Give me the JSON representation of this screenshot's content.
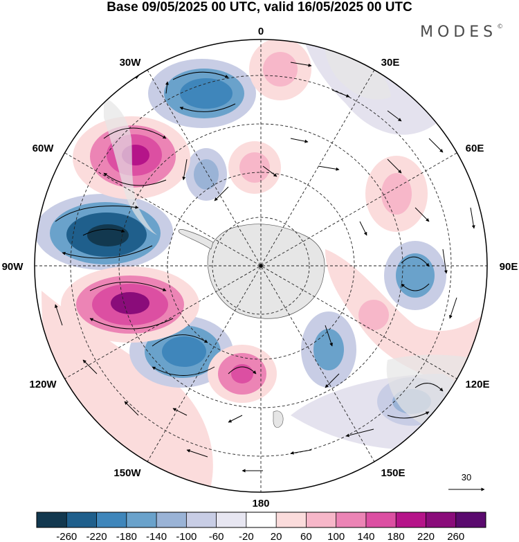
{
  "header": {
    "title": "Base 09/05/2025 00 UTC, valid 16/05/2025 00 UTC",
    "brand": "MODES",
    "brand_mark": "©"
  },
  "map": {
    "projection": "south-polar-stereographic",
    "lon_labels": [
      "0",
      "30E",
      "60E",
      "90E",
      "120E",
      "150E",
      "180",
      "150W",
      "120W",
      "90W",
      "60W",
      "30W"
    ],
    "wind_reference": "30",
    "colors": {
      "land": "#e6e6e6",
      "negative_strong": "#3b7db5",
      "negative_light": "#dcdceb",
      "positive_strong": "#c2128a",
      "positive_light": "#f8d4d4"
    }
  },
  "colorbar": {
    "ticks": [
      "-260",
      "-220",
      "-180",
      "-140",
      "-100",
      "-60",
      "-20",
      "20",
      "60",
      "100",
      "140",
      "180",
      "220",
      "260"
    ],
    "colors": [
      "#12384f",
      "#1f5f8c",
      "#3f86bb",
      "#6aa2cb",
      "#9ab3d6",
      "#c8cde5",
      "#e7e6f1",
      "#ffffff",
      "#fbdcdc",
      "#f7b7c9",
      "#ec84b5",
      "#dc4fa2",
      "#b51489",
      "#8a0c7a",
      "#5a0a6e"
    ]
  }
}
